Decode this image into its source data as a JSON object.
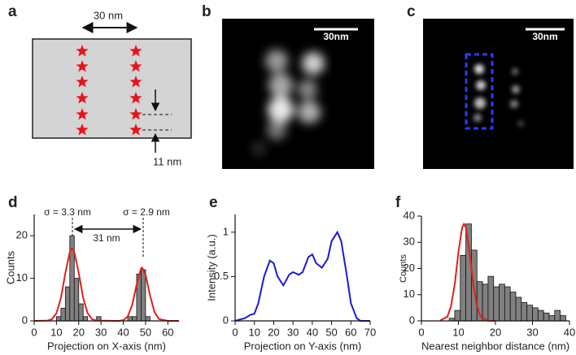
{
  "panels": {
    "a": {
      "label": "a",
      "width_label": "30 nm",
      "spacing_label": "11 nm"
    },
    "b": {
      "label": "b",
      "scale_bar": "30nm"
    },
    "c": {
      "label": "c",
      "scale_bar": "30nm"
    }
  },
  "chart_data": [
    {
      "type": "histogram",
      "panel_label": "d",
      "x_label": "Projection on X-axis (nm)",
      "y_label": "Counts",
      "annotations": [
        "σ = 3.3 nm",
        "σ = 2.9 nm",
        "31 nm"
      ],
      "bins": [
        10,
        12,
        14,
        16,
        18,
        20,
        22,
        24,
        26,
        28,
        30,
        32,
        34,
        36,
        38,
        40,
        42,
        44,
        46,
        48,
        50,
        52,
        54
      ],
      "counts": [
        1,
        3,
        8,
        20,
        10,
        4,
        1,
        0,
        0,
        1,
        0,
        0,
        0,
        0,
        0,
        0,
        1,
        1,
        11,
        12,
        1,
        0
      ],
      "color": "#808080",
      "fit": {
        "color": "#e0201b",
        "x": [
          0,
          6,
          8,
          10,
          12,
          14,
          16,
          17,
          18,
          20,
          22,
          24,
          26,
          28,
          38,
          40,
          42,
          44,
          46,
          48,
          48.5,
          50,
          52,
          54,
          56,
          60,
          65
        ],
        "y": [
          0,
          0.07,
          0.41,
          1.79,
          5.4,
          11.2,
          16.2,
          17,
          16.2,
          11.2,
          5.4,
          1.79,
          0.41,
          0.07,
          0,
          0.17,
          1.02,
          3.76,
          8.6,
          12.3,
          12.5,
          10.9,
          6.0,
          2.07,
          0.44,
          0,
          0
        ]
      },
      "xlim": [
        0,
        65
      ],
      "xticks": [
        0,
        10,
        20,
        30,
        40,
        50,
        60
      ],
      "ylim": [
        0,
        25
      ],
      "yticks": [
        0,
        10,
        20
      ]
    },
    {
      "type": "line",
      "panel_label": "e",
      "x_label": "Projection on Y-axis (nm)",
      "y_label": "Intensity (a.u.)",
      "x": [
        0,
        5,
        8,
        10,
        12,
        15,
        18,
        20,
        22,
        25,
        28,
        30,
        33,
        35,
        38,
        40,
        42,
        45,
        48,
        50,
        53,
        55,
        58,
        60,
        63,
        65,
        70
      ],
      "values": [
        0,
        0.03,
        0.07,
        0.08,
        0.2,
        0.5,
        0.68,
        0.65,
        0.5,
        0.4,
        0.52,
        0.55,
        0.52,
        0.55,
        0.72,
        0.75,
        0.65,
        0.6,
        0.7,
        0.9,
        1.0,
        0.9,
        0.5,
        0.2,
        0.03,
        0,
        0
      ],
      "color": "#1a1adc",
      "xlim": [
        0,
        70
      ],
      "xticks": [
        0,
        10,
        20,
        30,
        40,
        50,
        60,
        70
      ],
      "ylim": [
        0,
        1.2
      ],
      "yticks": [
        0,
        0.5,
        1
      ]
    },
    {
      "type": "histogram",
      "panel_label": "f",
      "x_label": "Nearest neighbor distance (nm)",
      "y_label": "Counts",
      "bins": [
        7.5,
        9,
        10.5,
        12,
        13.5,
        15,
        16.5,
        18,
        19.5,
        21,
        22.5,
        24,
        25.5,
        27,
        28.5,
        30,
        31.5,
        33,
        34.5,
        36,
        37.5,
        39
      ],
      "counts": [
        1,
        4,
        25,
        37,
        27,
        15,
        14,
        17,
        13,
        14,
        13,
        11,
        9,
        7,
        6,
        5,
        4,
        3,
        2,
        4,
        2
      ],
      "color": "#808080",
      "fit": {
        "color": "#e0201b",
        "x": [
          5,
          7,
          8,
          9,
          10,
          11,
          11.5,
          12,
          13,
          14,
          15,
          16,
          18,
          20
        ],
        "y": [
          0.06,
          1.6,
          5.6,
          14.1,
          26.2,
          35.6,
          37,
          35.6,
          26.2,
          14.1,
          5.6,
          1.6,
          0.06,
          0
        ]
      },
      "xlim": [
        0,
        40
      ],
      "xticks": [
        0,
        10,
        20,
        30,
        40
      ],
      "ylim": [
        0,
        40
      ],
      "yticks": [
        0,
        10,
        20,
        30,
        40
      ]
    }
  ]
}
